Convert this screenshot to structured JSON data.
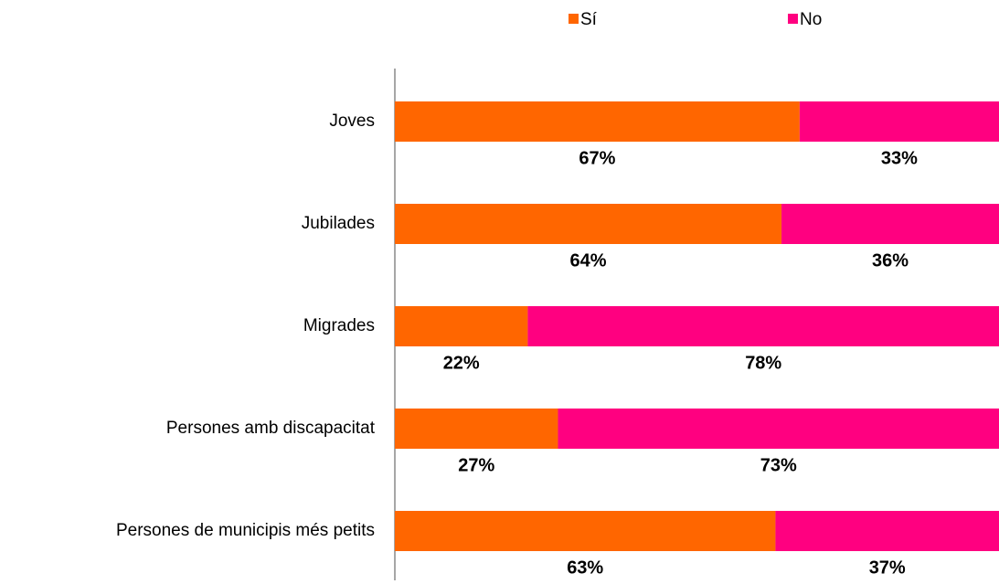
{
  "chart_data": {
    "type": "stacked-bar-horizontal",
    "categories": [
      "Joves",
      "Jubilades",
      "Migrades",
      "Persones amb discapacitat",
      "Persones de municipis més petits"
    ],
    "series": [
      {
        "name": "Sí",
        "color": "#ff6600",
        "values": [
          67,
          64,
          22,
          27,
          63
        ],
        "value_labels": [
          "67%",
          "64%",
          "22%",
          "27%",
          "63%"
        ]
      },
      {
        "name": "No",
        "color": "#ff0080",
        "values": [
          33,
          36,
          78,
          73,
          37
        ],
        "value_labels": [
          "33%",
          "36%",
          "78%",
          "73%",
          "37%"
        ]
      }
    ],
    "xlim": [
      0,
      100
    ]
  }
}
